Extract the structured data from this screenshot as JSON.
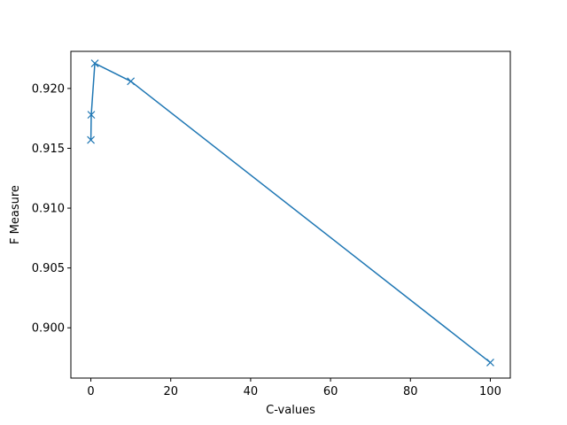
{
  "chart_data": {
    "type": "line",
    "title": "",
    "xlabel": "C-values",
    "ylabel": "F Measure",
    "xlim": [
      -5,
      105
    ],
    "ylim": [
      0.8958,
      0.9231
    ],
    "xticks": [
      0,
      20,
      40,
      60,
      80,
      100
    ],
    "xtick_labels": [
      "0",
      "20",
      "40",
      "60",
      "80",
      "100"
    ],
    "yticks": [
      0.9,
      0.905,
      0.91,
      0.915,
      0.92
    ],
    "ytick_labels": [
      "0.900",
      "0.905",
      "0.910",
      "0.915",
      "0.920"
    ],
    "grid": false,
    "legend": false,
    "series": [
      {
        "color": "#1f77b4",
        "marker": "x",
        "x": [
          0.01,
          0.1,
          1,
          10,
          100
        ],
        "y": [
          0.9157,
          0.9178,
          0.9221,
          0.9206,
          0.8971
        ]
      }
    ]
  }
}
